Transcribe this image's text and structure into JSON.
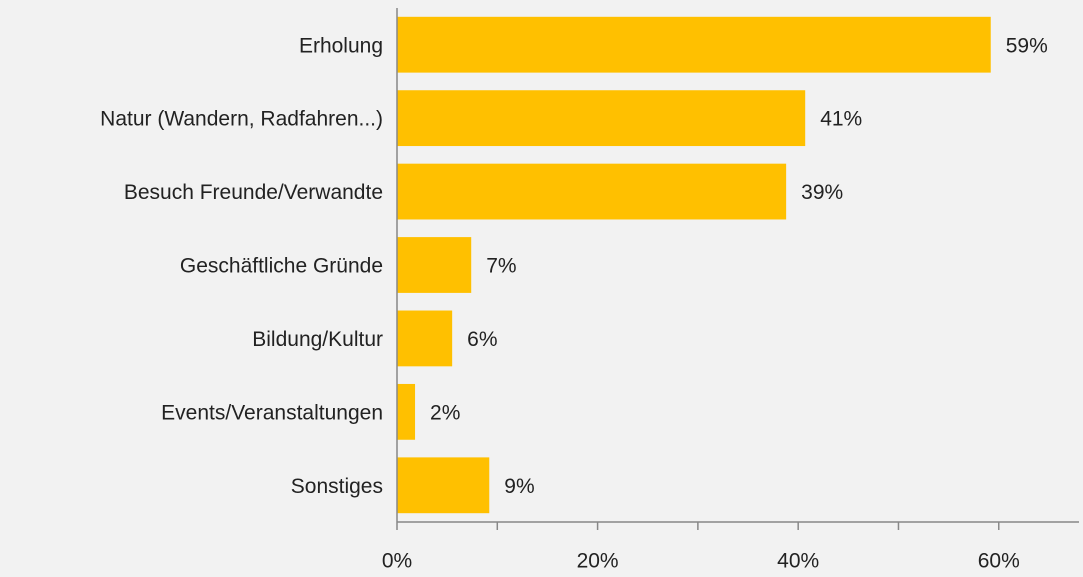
{
  "chart_data": {
    "type": "barh",
    "categories": [
      "Erholung",
      "Natur (Wandern, Radfahren...)",
      "Besuch Freunde/Verwandte",
      "Geschäftliche Gründe",
      "Bildung/Kultur",
      "Events/Veranstaltungen",
      "Sonstiges"
    ],
    "values": [
      59.2,
      40.7,
      38.8,
      7.4,
      5.5,
      1.8,
      9.2
    ],
    "value_labels": [
      "59%",
      "41%",
      "39%",
      "7%",
      "6%",
      "2%",
      "9%"
    ],
    "color": "#ffc000",
    "xlim": [
      0,
      68
    ],
    "xticks": [
      {
        "value": 0,
        "label": "0%"
      },
      {
        "value": 20,
        "label": "20%"
      },
      {
        "value": 40,
        "label": "40%"
      },
      {
        "value": 60,
        "label": "60%"
      }
    ],
    "xminorticks": [
      10,
      30,
      50
    ],
    "grid": false
  }
}
